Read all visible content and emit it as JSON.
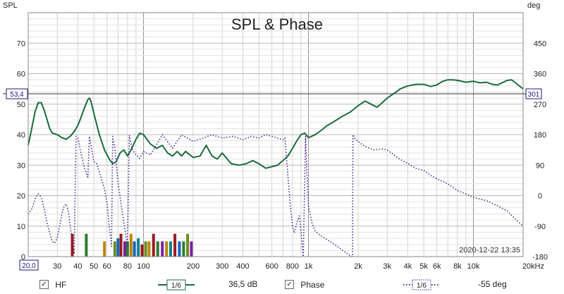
{
  "chart_data": {
    "type": "line",
    "title": "SPL & Phase",
    "x_scale": "log",
    "xlim": [
      20,
      20000
    ],
    "x_ticks": [
      20,
      30,
      40,
      50,
      60,
      80,
      100,
      200,
      300,
      400,
      600,
      800,
      1000,
      2000,
      3000,
      4000,
      5000,
      6000,
      8000,
      10000,
      20000
    ],
    "x_tick_labels": [
      "20,0",
      "30",
      "40",
      "50",
      "60",
      "80",
      "100",
      "200",
      "300",
      "400",
      "600",
      "800",
      "1k",
      "2k",
      "3k",
      "4k",
      "5k",
      "6k",
      "8k",
      "10k",
      "20kHz"
    ],
    "y_left_label": "SPL",
    "y_left_lim": [
      0,
      80
    ],
    "y_left_ticks": [
      0,
      10,
      20,
      30,
      40,
      50,
      60,
      70
    ],
    "y_right_label": "deg",
    "y_right_lim": [
      -180,
      540
    ],
    "y_right_ticks": [
      -180,
      -90,
      0,
      90,
      180,
      270,
      360,
      450
    ],
    "cursor_spl": "53,4",
    "cursor_phase": "301",
    "cursor_value": 53.4,
    "timestamp": "2020-12-22 13:35",
    "grid": true,
    "series": [
      {
        "name": "HF",
        "axis": "left",
        "color": "#1a6b3c",
        "style": "solid",
        "points": [
          [
            20,
            36.5
          ],
          [
            21,
            42
          ],
          [
            22,
            47.5
          ],
          [
            23,
            50.5
          ],
          [
            24,
            50.5
          ],
          [
            25,
            48
          ],
          [
            26,
            45
          ],
          [
            27,
            42
          ],
          [
            28,
            40.5
          ],
          [
            30,
            40
          ],
          [
            32,
            39
          ],
          [
            34,
            38.5
          ],
          [
            36,
            39.5
          ],
          [
            38,
            41
          ],
          [
            40,
            43
          ],
          [
            42,
            46
          ],
          [
            44,
            49
          ],
          [
            46,
            51.5
          ],
          [
            47,
            52
          ],
          [
            48,
            51
          ],
          [
            50,
            47
          ],
          [
            54,
            40
          ],
          [
            58,
            35
          ],
          [
            62,
            32
          ],
          [
            65,
            30.5
          ],
          [
            68,
            31
          ],
          [
            72,
            34
          ],
          [
            76,
            35
          ],
          [
            80,
            33
          ],
          [
            85,
            35.5
          ],
          [
            90,
            38.5
          ],
          [
            95,
            40.5
          ],
          [
            100,
            40
          ],
          [
            110,
            37
          ],
          [
            120,
            35.5
          ],
          [
            130,
            36.5
          ],
          [
            140,
            34
          ],
          [
            150,
            33
          ],
          [
            160,
            34.5
          ],
          [
            170,
            33
          ],
          [
            180,
            34.5
          ],
          [
            200,
            32.5
          ],
          [
            220,
            33
          ],
          [
            240,
            36.5
          ],
          [
            260,
            33
          ],
          [
            280,
            32
          ],
          [
            300,
            34
          ],
          [
            340,
            30.5
          ],
          [
            380,
            30
          ],
          [
            420,
            30.5
          ],
          [
            460,
            31.5
          ],
          [
            500,
            30.5
          ],
          [
            550,
            29
          ],
          [
            600,
            29.5
          ],
          [
            650,
            30
          ],
          [
            700,
            31.5
          ],
          [
            750,
            33
          ],
          [
            800,
            35.5
          ],
          [
            850,
            38
          ],
          [
            900,
            40
          ],
          [
            950,
            40.5
          ],
          [
            1000,
            39
          ],
          [
            1100,
            40
          ],
          [
            1200,
            41.5
          ],
          [
            1300,
            43
          ],
          [
            1400,
            44
          ],
          [
            1600,
            46
          ],
          [
            1800,
            47.5
          ],
          [
            2000,
            49.5
          ],
          [
            2200,
            51
          ],
          [
            2400,
            50
          ],
          [
            2600,
            49
          ],
          [
            2800,
            50.5
          ],
          [
            3000,
            52
          ],
          [
            3300,
            53.5
          ],
          [
            3600,
            55
          ],
          [
            4000,
            56
          ],
          [
            4500,
            56.5
          ],
          [
            5000,
            56.5
          ],
          [
            5500,
            55.8
          ],
          [
            6000,
            56.3
          ],
          [
            6500,
            57.5
          ],
          [
            7000,
            58
          ],
          [
            7500,
            58
          ],
          [
            8000,
            57.8
          ],
          [
            9000,
            57.2
          ],
          [
            10000,
            57.5
          ],
          [
            11000,
            57
          ],
          [
            12000,
            57.2
          ],
          [
            13000,
            56.5
          ],
          [
            14000,
            56.3
          ],
          [
            16000,
            57.8
          ],
          [
            17000,
            58
          ],
          [
            18000,
            57
          ],
          [
            20000,
            55
          ]
        ]
      },
      {
        "name": "Phase",
        "axis": "right",
        "color": "#4b2a8f",
        "style": "dotted",
        "points": [
          [
            20,
            -55
          ],
          [
            21,
            -40
          ],
          [
            22,
            -10
          ],
          [
            23,
            5
          ],
          [
            24,
            -5
          ],
          [
            25,
            -40
          ],
          [
            26,
            -80
          ],
          [
            27,
            -110
          ],
          [
            28,
            -135
          ],
          [
            29,
            -140
          ],
          [
            30,
            -125
          ],
          [
            31,
            -90
          ],
          [
            32,
            -55
          ],
          [
            33,
            -30
          ],
          [
            34,
            -25
          ],
          [
            35,
            -45
          ],
          [
            36,
            -90
          ],
          [
            37,
            -140
          ],
          [
            38,
            -172
          ],
          [
            39,
            175
          ],
          [
            40,
            170
          ],
          [
            42,
            120
          ],
          [
            44,
            80
          ],
          [
            46,
            55
          ],
          [
            47,
            175
          ],
          [
            48,
            150
          ],
          [
            50,
            100
          ],
          [
            52,
            95
          ],
          [
            54,
            70
          ],
          [
            56,
            45
          ],
          [
            58,
            20
          ],
          [
            60,
            -20
          ],
          [
            62,
            -90
          ],
          [
            64,
            -150
          ],
          [
            65,
            175
          ],
          [
            67,
            140
          ],
          [
            70,
            40
          ],
          [
            75,
            -60
          ],
          [
            80,
            -150
          ],
          [
            82,
            178
          ],
          [
            85,
            140
          ],
          [
            90,
            120
          ],
          [
            95,
            110
          ],
          [
            100,
            130
          ],
          [
            110,
            120
          ],
          [
            120,
            150
          ],
          [
            130,
            180
          ],
          [
            150,
            140
          ],
          [
            170,
            180
          ],
          [
            200,
            160
          ],
          [
            230,
            170
          ],
          [
            260,
            180
          ],
          [
            300,
            170
          ],
          [
            350,
            175
          ],
          [
            400,
            165
          ],
          [
            450,
            175
          ],
          [
            500,
            170
          ],
          [
            550,
            180
          ],
          [
            600,
            175
          ],
          [
            650,
            170
          ],
          [
            700,
            165
          ],
          [
            720,
            170
          ],
          [
            750,
            60
          ],
          [
            780,
            -40
          ],
          [
            800,
            -90
          ],
          [
            820,
            -110
          ],
          [
            850,
            -80
          ],
          [
            880,
            -60
          ],
          [
            900,
            -100
          ],
          [
            920,
            -160
          ],
          [
            930,
            -180
          ],
          [
            960,
            175
          ],
          [
            980,
            60
          ],
          [
            1000,
            -30
          ],
          [
            1050,
            -80
          ],
          [
            1100,
            -105
          ],
          [
            1200,
            -120
          ],
          [
            1300,
            -130
          ],
          [
            1400,
            -140
          ],
          [
            1500,
            -150
          ],
          [
            1600,
            -160
          ],
          [
            1700,
            -170
          ],
          [
            1800,
            -178
          ],
          [
            1850,
            -180
          ],
          [
            1860,
            180
          ],
          [
            1900,
            170
          ],
          [
            2000,
            160
          ],
          [
            2200,
            145
          ],
          [
            2500,
            135
          ],
          [
            2800,
            138
          ],
          [
            3000,
            135
          ],
          [
            3200,
            125
          ],
          [
            3500,
            110
          ],
          [
            4000,
            95
          ],
          [
            4500,
            80
          ],
          [
            5000,
            75
          ],
          [
            5500,
            60
          ],
          [
            6000,
            50
          ],
          [
            7000,
            35
          ],
          [
            8000,
            15
          ],
          [
            9000,
            5
          ],
          [
            10000,
            -5
          ],
          [
            12000,
            -15
          ],
          [
            14000,
            -30
          ],
          [
            16000,
            -45
          ],
          [
            18000,
            -70
          ],
          [
            20000,
            -90
          ]
        ]
      }
    ],
    "bars": [
      {
        "f": 37,
        "h": 7.5,
        "color": "#9b1c1c"
      },
      {
        "f": 45,
        "h": 7.5,
        "color": "#2e7d32"
      },
      {
        "f": 58,
        "h": 5,
        "color": "#b8860b"
      },
      {
        "f": 67,
        "h": 5,
        "color": "#6b8e23"
      },
      {
        "f": 70,
        "h": 6,
        "color": "#1565c0"
      },
      {
        "f": 73,
        "h": 7.5,
        "color": "#9b1c1c"
      },
      {
        "f": 77,
        "h": 5,
        "color": "#7b1fa2"
      },
      {
        "f": 80,
        "h": 5,
        "color": "#2e7d32"
      },
      {
        "f": 84,
        "h": 7.5,
        "color": "#b8860b"
      },
      {
        "f": 88,
        "h": 5,
        "color": "#1565c0"
      },
      {
        "f": 93,
        "h": 6,
        "color": "#00838f"
      },
      {
        "f": 98,
        "h": 4,
        "color": "#9b1c1c"
      },
      {
        "f": 103,
        "h": 5,
        "color": "#6b8e23"
      },
      {
        "f": 108,
        "h": 5,
        "color": "#b8860b"
      },
      {
        "f": 115,
        "h": 7.5,
        "color": "#9b1c1c"
      },
      {
        "f": 122,
        "h": 5,
        "color": "#2e7d32"
      },
      {
        "f": 130,
        "h": 5,
        "color": "#7b1fa2"
      },
      {
        "f": 138,
        "h": 5,
        "color": "#b8860b"
      },
      {
        "f": 146,
        "h": 5,
        "color": "#00838f"
      },
      {
        "f": 155,
        "h": 7.5,
        "color": "#9b1c1c"
      },
      {
        "f": 165,
        "h": 5,
        "color": "#1565c0"
      },
      {
        "f": 175,
        "h": 5,
        "color": "#2e7d32"
      },
      {
        "f": 185,
        "h": 7.5,
        "color": "#6b8e23"
      },
      {
        "f": 195,
        "h": 5,
        "color": "#7b1fa2"
      }
    ]
  },
  "legend": {
    "hf_label": "HF",
    "hf_smoothing": "1/6",
    "hf_value": "36,5 dB",
    "phase_label": "Phase",
    "phase_smoothing": "1/6",
    "phase_value": "-55 deg"
  }
}
